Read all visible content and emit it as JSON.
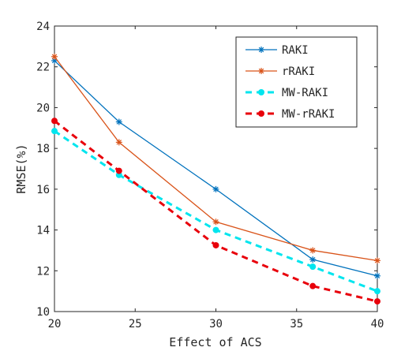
{
  "chart_data": {
    "type": "line",
    "xlabel": "Effect of ACS",
    "ylabel": "RMSE(%)",
    "xlim": [
      20,
      40
    ],
    "ylim": [
      10,
      24
    ],
    "x_ticks": [
      "20",
      "25",
      "30",
      "35",
      "40"
    ],
    "y_ticks": [
      "10",
      "12",
      "14",
      "16",
      "18",
      "20",
      "22",
      "24"
    ],
    "grid": false,
    "legend_position": "top-right",
    "x": [
      20,
      24,
      30,
      36,
      40
    ],
    "series": [
      {
        "name": "RAKI",
        "values": [
          22.3,
          19.3,
          16.0,
          12.55,
          11.75
        ],
        "color": "#0072BD",
        "line_style": "solid",
        "marker": "asterisk"
      },
      {
        "name": "rRAKI",
        "values": [
          22.5,
          18.3,
          14.4,
          13.0,
          12.5
        ],
        "color": "#D95319",
        "line_style": "solid",
        "marker": "asterisk"
      },
      {
        "name": "MW-RAKI",
        "values": [
          18.85,
          16.7,
          14.0,
          12.2,
          11.0
        ],
        "color": "#00E5EE",
        "line_style": "dashed",
        "marker": "dot"
      },
      {
        "name": "MW-rRAKI",
        "values": [
          19.35,
          16.9,
          13.25,
          11.25,
          10.5
        ],
        "color": "#E8000B",
        "line_style": "dashed",
        "marker": "dot"
      }
    ]
  }
}
